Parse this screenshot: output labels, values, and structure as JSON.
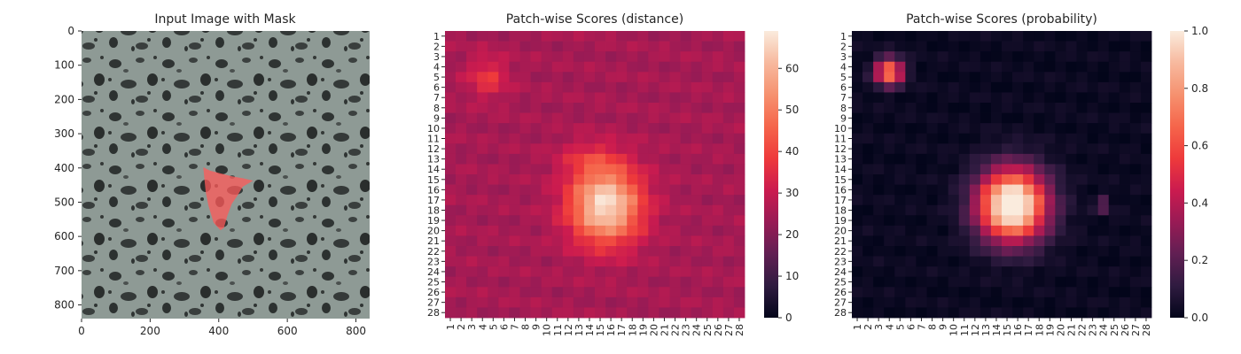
{
  "figure": {
    "panels": [
      {
        "title": "Input Image with Mask"
      },
      {
        "title": "Patch-wise Scores (distance)"
      },
      {
        "title": "Patch-wise Scores (probability)"
      }
    ]
  },
  "colors": {
    "rocket_stops": [
      "#03051a",
      "#2f1b40",
      "#611f53",
      "#981b55",
      "#cb1b4f",
      "#ee3a3b",
      "#f5654b",
      "#f6916f",
      "#f7b99e",
      "#faebdd"
    ],
    "mask": "#ff5a5a",
    "tick": "#262626"
  },
  "chart_data": [
    {
      "type": "image",
      "title": "Input Image with Mask",
      "xlabel": "",
      "ylabel": "",
      "xlim": [
        0,
        840
      ],
      "ylim": [
        840,
        0
      ],
      "xticks": [
        0,
        200,
        400,
        600,
        800
      ],
      "yticks": [
        0,
        100,
        200,
        300,
        400,
        500,
        600,
        700,
        800
      ],
      "mask_polygon": [
        [
          355,
          398
        ],
        [
          375,
          408
        ],
        [
          440,
          425
        ],
        [
          470,
          430
        ],
        [
          500,
          437
        ],
        [
          470,
          455
        ],
        [
          455,
          480
        ],
        [
          438,
          505
        ],
        [
          425,
          540
        ],
        [
          415,
          575
        ],
        [
          405,
          582
        ],
        [
          385,
          560
        ],
        [
          370,
          510
        ],
        [
          362,
          470
        ],
        [
          358,
          430
        ]
      ]
    },
    {
      "type": "heatmap",
      "title": "Patch-wise Scores (distance)",
      "xlabel": "",
      "ylabel": "",
      "rows": 28,
      "cols": 28,
      "vmin": 0,
      "vmax": 69,
      "colorbar_ticks": [
        0,
        10,
        20,
        30,
        40,
        50,
        60
      ],
      "model": {
        "background": 25,
        "blobs": [
          {
            "row": 16.5,
            "col": 14.5,
            "sigma_row": 2.6,
            "sigma_col": 2.3,
            "amp": 43
          },
          {
            "row": 4,
            "col": 3.5,
            "sigma_row": 1.4,
            "sigma_col": 1.3,
            "amp": 12
          },
          {
            "row": 12,
            "col": 13,
            "sigma_row": 1.2,
            "sigma_col": 2.0,
            "amp": 8
          }
        ],
        "variation_amp": 3
      }
    },
    {
      "type": "heatmap",
      "title": "Patch-wise Scores (probability)",
      "xlabel": "",
      "ylabel": "",
      "rows": 28,
      "cols": 28,
      "vmin": 0,
      "vmax": 1,
      "colorbar_ticks": [
        0.0,
        0.2,
        0.4,
        0.6,
        0.8,
        1.0
      ],
      "model": {
        "background": 0.02,
        "blobs": [
          {
            "row": 16.5,
            "col": 14.5,
            "sigma_row": 2.4,
            "sigma_col": 2.2,
            "amp": 1.15
          },
          {
            "row": 3.5,
            "col": 3,
            "sigma_row": 0.9,
            "sigma_col": 0.9,
            "amp": 0.75
          },
          {
            "row": 16.5,
            "col": 23,
            "sigma_row": 0.5,
            "sigma_col": 0.5,
            "amp": 0.25
          }
        ],
        "variation_amp": 0.03
      }
    }
  ]
}
